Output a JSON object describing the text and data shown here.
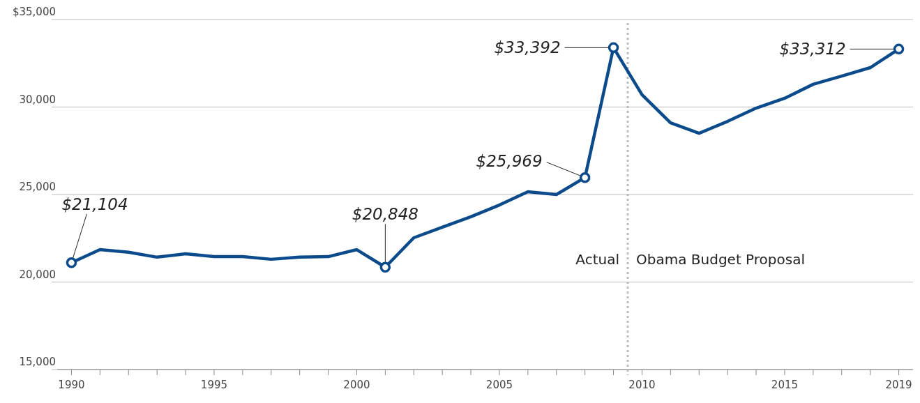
{
  "chart_data": {
    "type": "line",
    "x": [
      1990,
      1991,
      1992,
      1993,
      1994,
      1995,
      1996,
      1997,
      1998,
      1999,
      2000,
      2001,
      2002,
      2003,
      2004,
      2005,
      2006,
      2007,
      2008,
      2009,
      2010,
      2011,
      2012,
      2013,
      2014,
      2015,
      2016,
      2017,
      2018,
      2019
    ],
    "series": [
      {
        "color": "#0b4a8b",
        "values": [
          21104,
          21850,
          21700,
          21420,
          21610,
          21450,
          21450,
          21300,
          21420,
          21450,
          21850,
          20848,
          22530,
          23130,
          23730,
          24400,
          25160,
          25000,
          25969,
          33392,
          30700,
          29100,
          28500,
          29180,
          29940,
          30500,
          31300,
          31770,
          32250,
          33312
        ],
        "value_labels": [
          "$21,104",
          null,
          null,
          null,
          null,
          null,
          null,
          null,
          null,
          null,
          null,
          "$20,848",
          null,
          null,
          null,
          null,
          null,
          null,
          "$25,969",
          "$33,392",
          null,
          null,
          null,
          null,
          null,
          null,
          null,
          null,
          null,
          "$33,312"
        ]
      }
    ],
    "xlim": [
      1989.5,
      2019.5
    ],
    "xticks": [
      1990,
      {
        "value": 1991,
        "label": null
      },
      {
        "value": 1992,
        "label": null
      },
      {
        "value": 1993,
        "label": null
      },
      {
        "value": 1994,
        "label": null
      },
      1995,
      {
        "value": 1996,
        "label": null
      },
      {
        "value": 1997,
        "label": null
      },
      {
        "value": 1998,
        "label": null
      },
      {
        "value": 1999,
        "label": null
      },
      2000,
      {
        "value": 2001,
        "label": null
      },
      {
        "value": 2002,
        "label": null
      },
      {
        "value": 2003,
        "label": null
      },
      {
        "value": 2004,
        "label": null
      },
      2005,
      {
        "value": 2006,
        "label": null
      },
      {
        "value": 2007,
        "label": null
      },
      {
        "value": 2008,
        "label": null
      },
      {
        "value": 2009,
        "label": null
      },
      2010,
      {
        "value": 2011,
        "label": null
      },
      {
        "value": 2012,
        "label": null
      },
      {
        "value": 2013,
        "label": null
      },
      {
        "value": 2014,
        "label": null
      },
      2015,
      {
        "value": 2016,
        "label": null
      },
      {
        "value": 2017,
        "label": null
      },
      {
        "value": 2018,
        "label": null
      },
      2019
    ],
    "ylim": [
      15000,
      35000
    ],
    "yticks": [
      {
        "value": 15000,
        "label": "15,000"
      },
      {
        "value": 20000,
        "label": "20,000"
      },
      {
        "value": 25000,
        "label": "25,000"
      },
      {
        "value": 30000,
        "label": "30,000"
      },
      {
        "value": 35000,
        "label": "$35,000"
      }
    ],
    "grid": "y",
    "line_style": "solid",
    "ref_lines": [
      {
        "axis": "x",
        "value": 2009.5,
        "color": "#bbbbbb",
        "line_style": "dotted"
      }
    ],
    "annotations": [
      {
        "text": "Actual",
        "x": 2009.5,
        "y": 21000
      },
      {
        "text": "Obama Budget Proposal",
        "x": 2009.5,
        "y": 21000
      }
    ]
  }
}
